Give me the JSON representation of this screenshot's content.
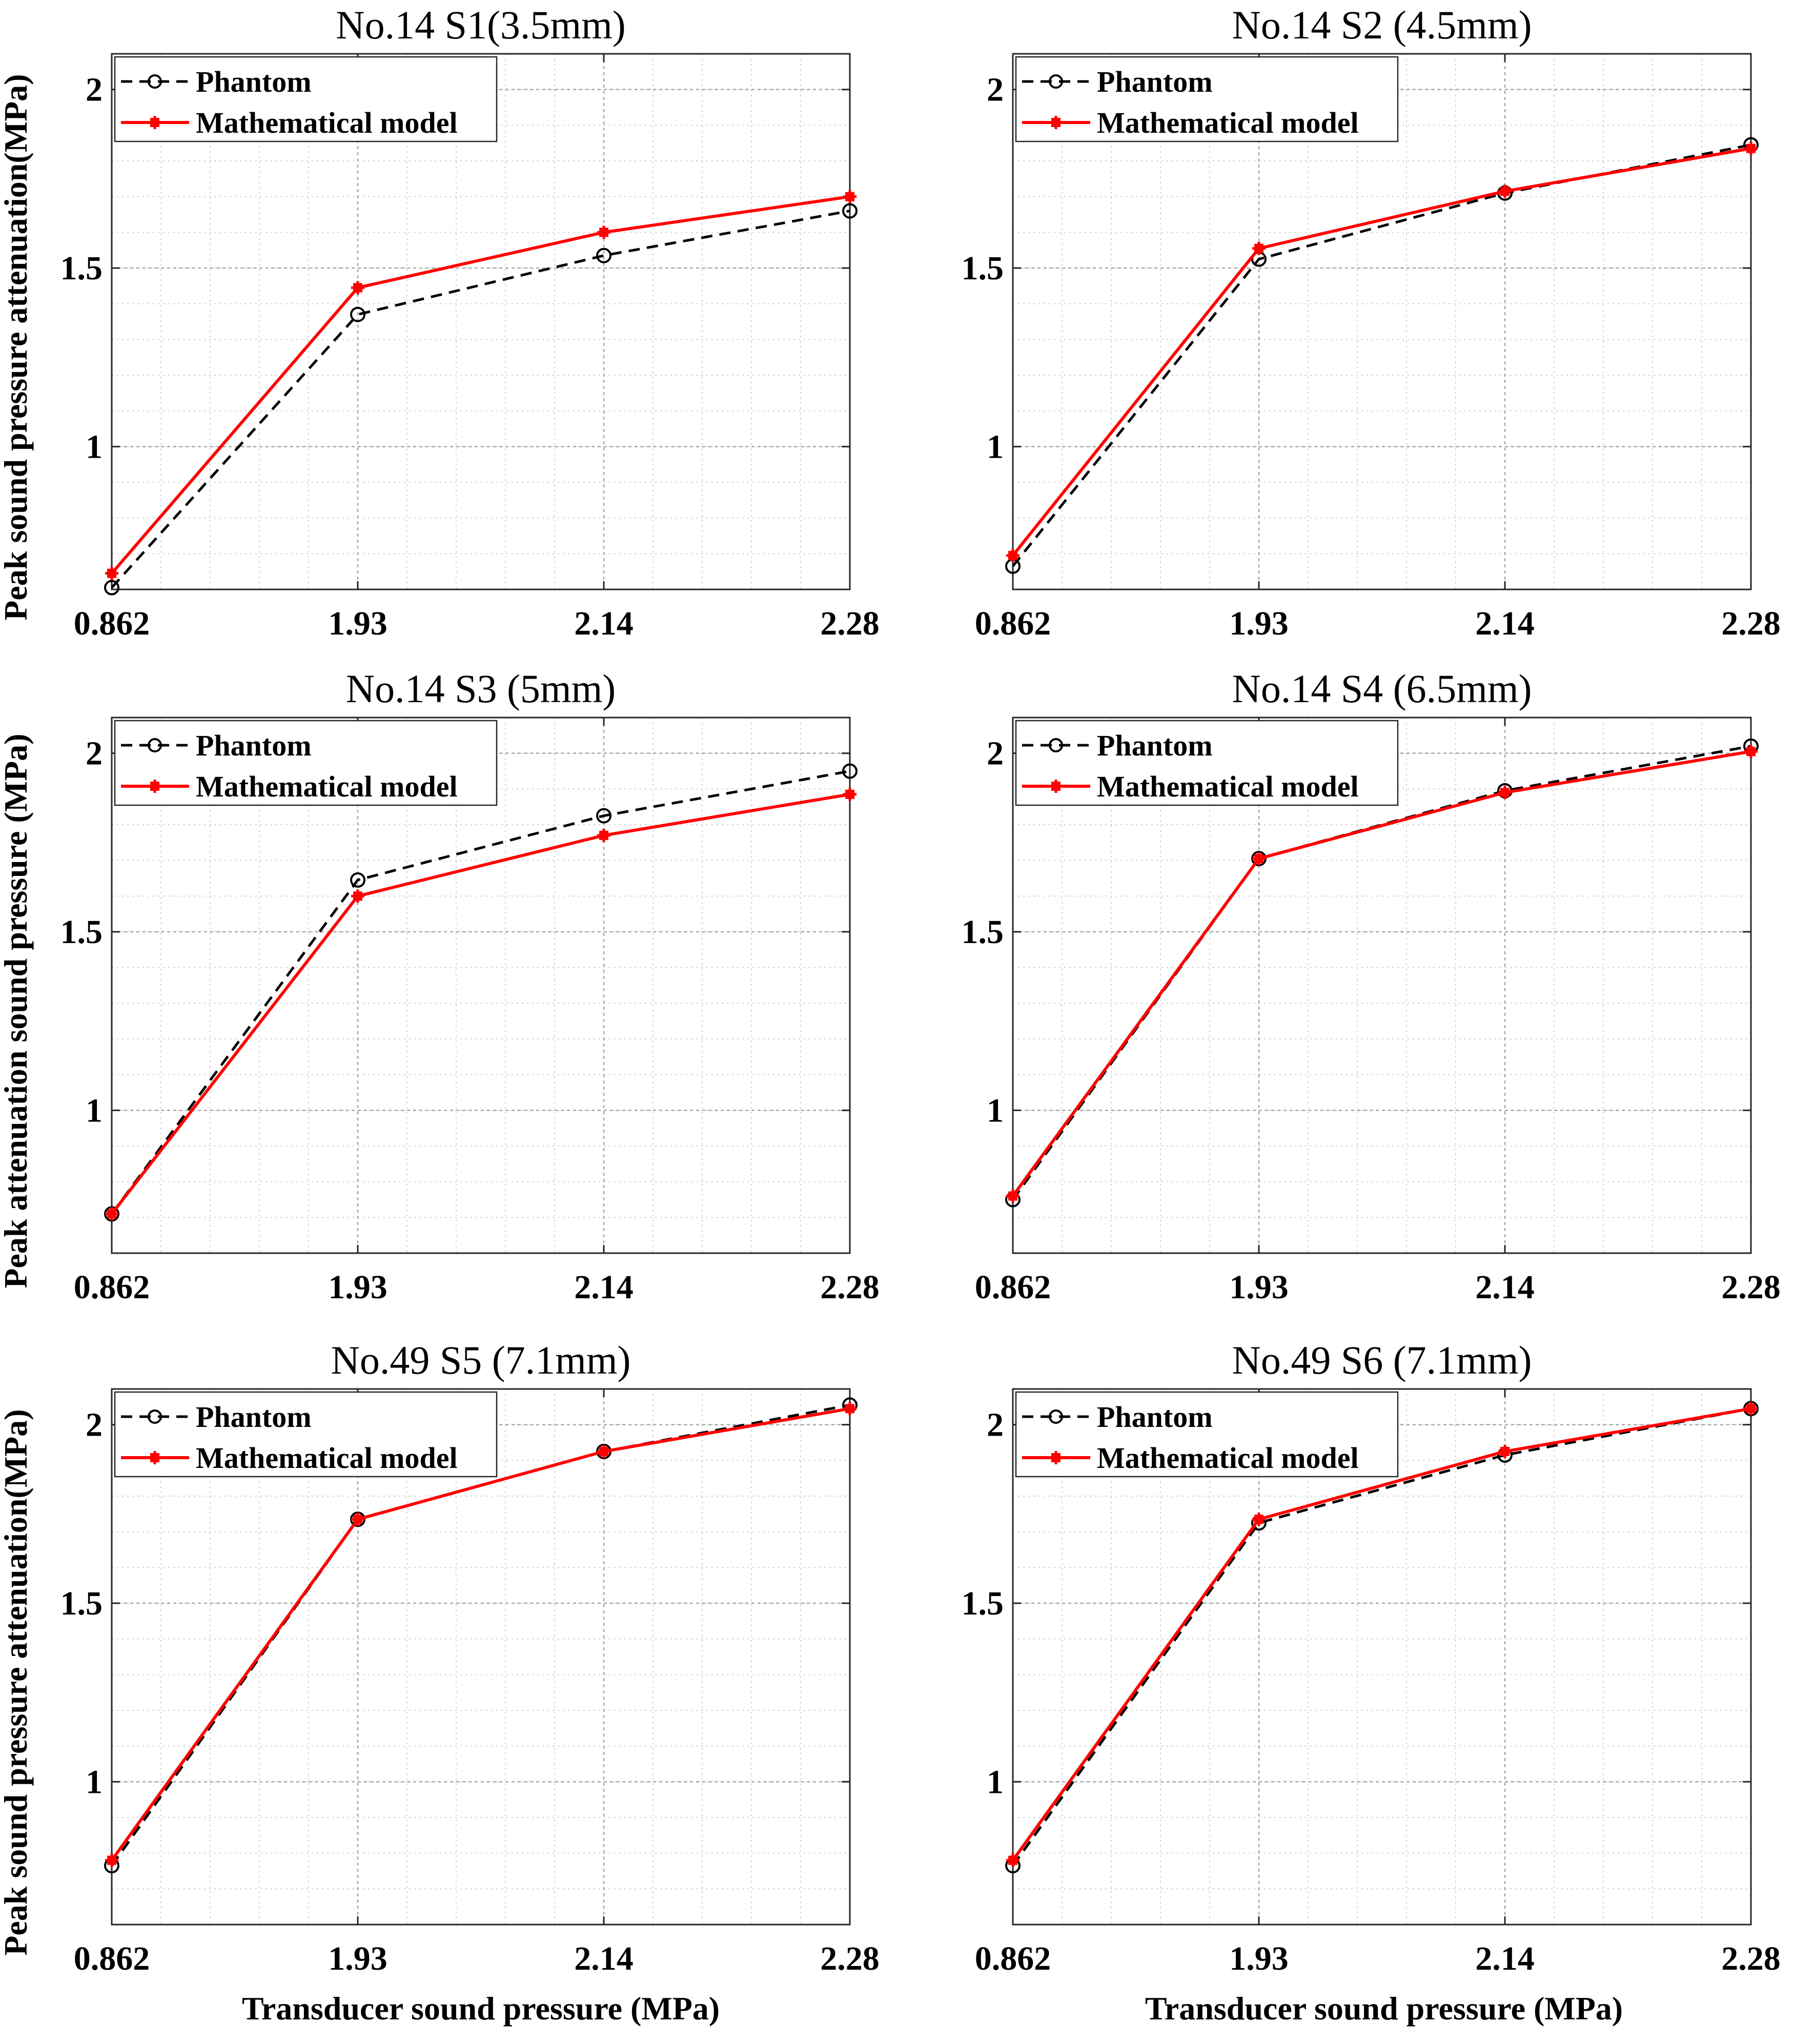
{
  "figure": {
    "shared_xlabel": "Transducer sound pressure (MPa)"
  },
  "chart_data": [
    {
      "type": "line",
      "title": "No.14 S1(3.5mm)",
      "categories": [
        "0.862",
        "1.93",
        "2.14",
        "2.28"
      ],
      "ylabel": "Peak sound pressure attenuation(MPa)",
      "ylim": [
        0.6,
        2.1
      ],
      "yticks": [
        "1",
        "1.5",
        "2"
      ],
      "series": [
        {
          "name": "Phantom",
          "values": [
            0.605,
            1.37,
            1.535,
            1.66
          ],
          "color": "#000000",
          "style": "dashed",
          "marker": "circle"
        },
        {
          "name": "Mathematical model",
          "values": [
            0.645,
            1.445,
            1.6,
            1.7
          ],
          "color": "#ff0000",
          "style": "solid",
          "marker": "star"
        }
      ]
    },
    {
      "type": "line",
      "title": "No.14 S2 (4.5mm)",
      "categories": [
        "0.862",
        "1.93",
        "2.14",
        "2.28"
      ],
      "ylabel": "",
      "ylim": [
        0.6,
        2.1
      ],
      "yticks": [
        "1",
        "1.5",
        "2"
      ],
      "series": [
        {
          "name": "Phantom",
          "values": [
            0.665,
            1.525,
            1.71,
            1.845
          ],
          "color": "#000000",
          "style": "dashed",
          "marker": "circle"
        },
        {
          "name": "Mathematical model",
          "values": [
            0.695,
            1.555,
            1.715,
            1.835
          ],
          "color": "#ff0000",
          "style": "solid",
          "marker": "star"
        }
      ]
    },
    {
      "type": "line",
      "title": "No.14 S3 (5mm)",
      "categories": [
        "0.862",
        "1.93",
        "2.14",
        "2.28"
      ],
      "ylabel": "Peak attenuation sound pressure (MPa)",
      "ylim": [
        0.6,
        2.1
      ],
      "yticks": [
        "1",
        "1.5",
        "2"
      ],
      "series": [
        {
          "name": "Phantom",
          "values": [
            0.71,
            1.645,
            1.825,
            1.95
          ],
          "color": "#000000",
          "style": "dashed",
          "marker": "circle"
        },
        {
          "name": "Mathematical model",
          "values": [
            0.71,
            1.6,
            1.77,
            1.885
          ],
          "color": "#ff0000",
          "style": "solid",
          "marker": "star"
        }
      ]
    },
    {
      "type": "line",
      "title": "No.14 S4 (6.5mm)",
      "categories": [
        "0.862",
        "1.93",
        "2.14",
        "2.28"
      ],
      "ylabel": "",
      "ylim": [
        0.6,
        2.1
      ],
      "yticks": [
        "1",
        "1.5",
        "2"
      ],
      "series": [
        {
          "name": "Phantom",
          "values": [
            0.75,
            1.705,
            1.895,
            2.02
          ],
          "color": "#000000",
          "style": "dashed",
          "marker": "circle"
        },
        {
          "name": "Mathematical model",
          "values": [
            0.76,
            1.705,
            1.89,
            2.005
          ],
          "color": "#ff0000",
          "style": "solid",
          "marker": "star"
        }
      ]
    },
    {
      "type": "line",
      "title": "No.49 S5 (7.1mm)",
      "categories": [
        "0.862",
        "1.93",
        "2.14",
        "2.28"
      ],
      "ylabel": "Peak sound pressure attenuation(MPa)",
      "ylim": [
        0.6,
        2.1
      ],
      "yticks": [
        "1",
        "1.5",
        "2"
      ],
      "series": [
        {
          "name": "Phantom",
          "values": [
            0.765,
            1.735,
            1.925,
            2.055
          ],
          "color": "#000000",
          "style": "dashed",
          "marker": "circle"
        },
        {
          "name": "Mathematical model",
          "values": [
            0.78,
            1.735,
            1.925,
            2.045
          ],
          "color": "#ff0000",
          "style": "solid",
          "marker": "star"
        }
      ]
    },
    {
      "type": "line",
      "title": "No.49 S6 (7.1mm)",
      "categories": [
        "0.862",
        "1.93",
        "2.14",
        "2.28"
      ],
      "ylabel": "",
      "ylim": [
        0.6,
        2.1
      ],
      "yticks": [
        "1",
        "1.5",
        "2"
      ],
      "series": [
        {
          "name": "Phantom",
          "values": [
            0.765,
            1.725,
            1.915,
            2.045
          ],
          "color": "#000000",
          "style": "dashed",
          "marker": "circle"
        },
        {
          "name": "Mathematical model",
          "values": [
            0.78,
            1.735,
            1.925,
            2.045
          ],
          "color": "#ff0000",
          "style": "solid",
          "marker": "star"
        }
      ]
    }
  ]
}
